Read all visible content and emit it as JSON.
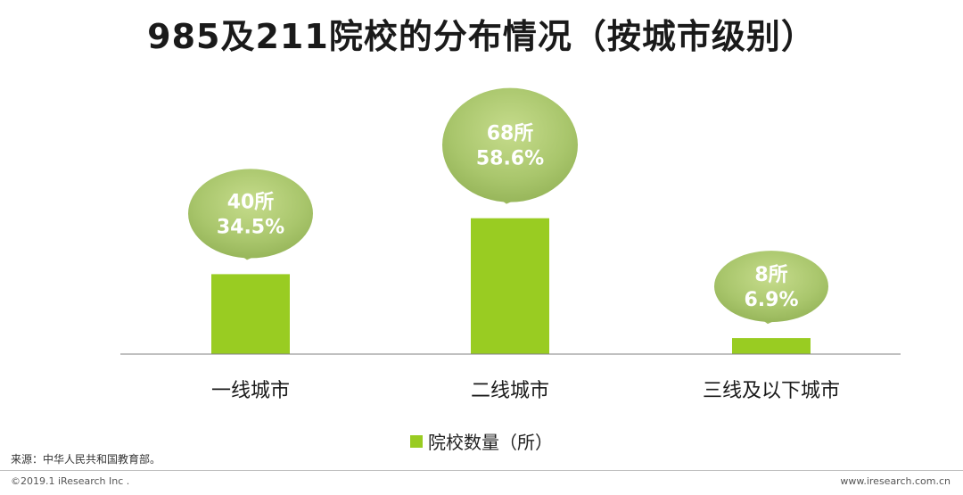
{
  "page": {
    "title": "985及211院校的分布情况（按城市级别）",
    "source": "来源：中华人民共和国教育部。",
    "copyright": "©2019.1 iResearch Inc .",
    "website": "www.iresearch.com.cn"
  },
  "colors": {
    "bar": "#99cc22",
    "bubble": "#a8c46a",
    "axis": "#808080"
  },
  "chart_data": {
    "type": "bar",
    "title": "985及211院校的分布情况（按城市级别）",
    "categories": [
      "一线城市",
      "二线城市",
      "三线及以下城市"
    ],
    "series": [
      {
        "name": "院校数量（所）",
        "values": [
          40,
          68,
          8
        ],
        "labels": [
          "40所",
          "68所",
          "8所"
        ],
        "percent_labels": [
          "34.5%",
          "58.6%",
          "6.9%"
        ]
      }
    ],
    "ylim": [
      0,
      90
    ],
    "grid": false,
    "legend": "bottom"
  }
}
